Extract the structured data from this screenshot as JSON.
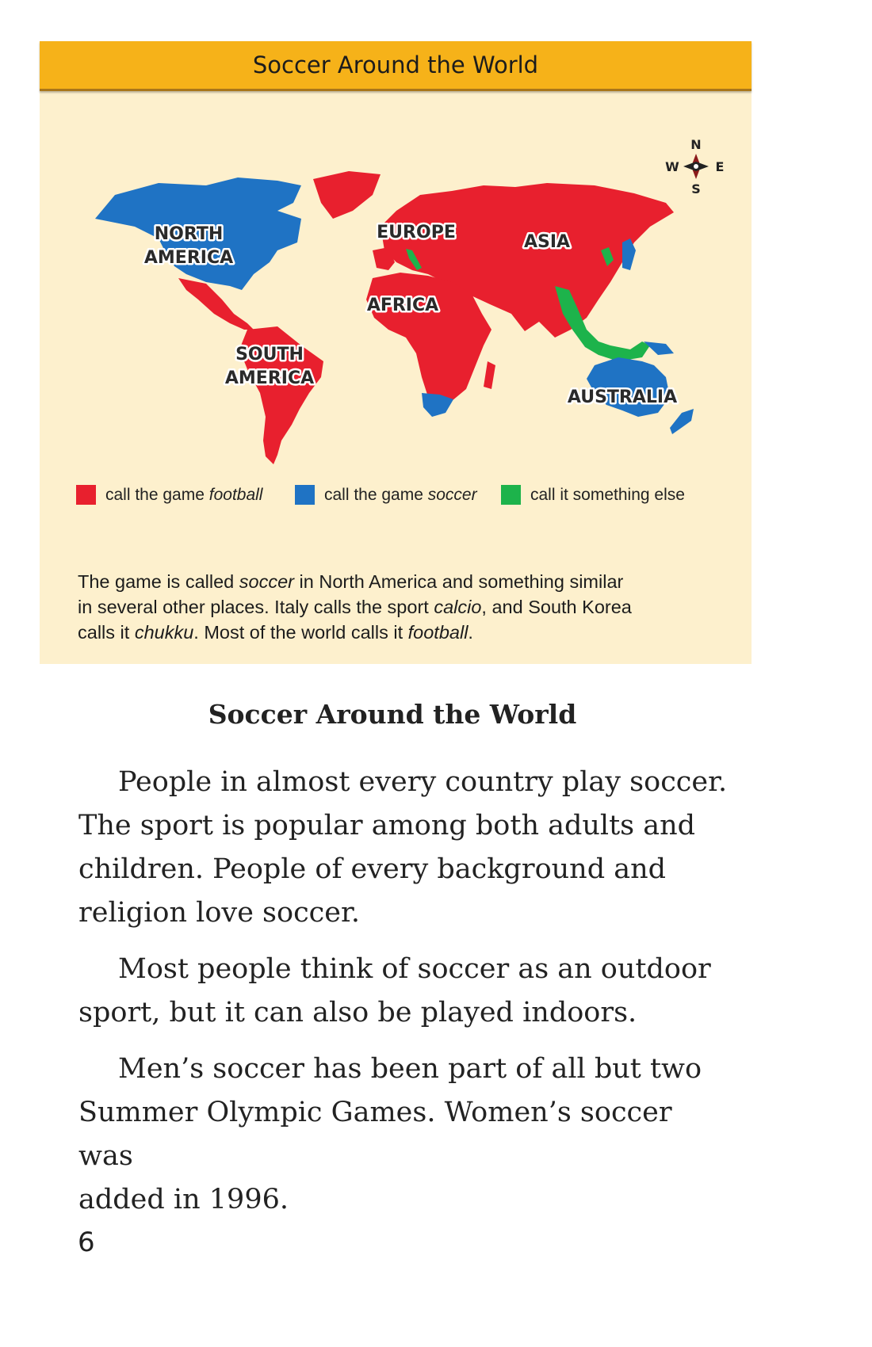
{
  "map": {
    "title": "Soccer Around the World",
    "compass": {
      "north": "N",
      "south": "S",
      "east": "E",
      "west": "W"
    },
    "regions": {
      "north_america": [
        "NORTH",
        "AMERICA"
      ],
      "south_america": [
        "SOUTH",
        "AMERICA"
      ],
      "europe": "EUROPE",
      "asia": "ASIA",
      "africa": "AFRICA",
      "australia": "AUSTRALIA"
    },
    "colors": {
      "football": "#e8202e",
      "soccer": "#1f73c4",
      "other": "#1db34b",
      "panel": "#fdf0cd",
      "header": "#f6b219"
    },
    "legend": [
      {
        "prefix": "call the game ",
        "term": "football",
        "color": "#e8202e"
      },
      {
        "prefix": "call the game ",
        "term": "soccer",
        "color": "#1f73c4"
      },
      {
        "prefix": "call it something else",
        "term": "",
        "color": "#1db34b"
      }
    ],
    "caption": {
      "l1a": "The game is called ",
      "l1b": "soccer",
      "l1c": " in North America and something similar",
      "l2a": "in several other places. Italy calls the sport ",
      "l2b": "calcio",
      "l2c": ", and South Korea",
      "l3a": "calls it ",
      "l3b": "chukku",
      "l3c": ". Most of the world calls it ",
      "l3d": "football",
      "l3e": "."
    }
  },
  "article": {
    "title": "Soccer Around the World",
    "paragraphs": [
      [
        "People in almost every country play soccer.",
        "The sport is popular among both adults and",
        "children. People of every background and",
        "religion love soccer."
      ],
      [
        "Most people think of soccer as an outdoor",
        "sport, but it can also be played indoors."
      ],
      [
        "Men’s soccer has been part of all but two",
        "Summer Olympic Games. Women’s soccer was",
        "added in 1996."
      ]
    ]
  },
  "page_number": "6"
}
